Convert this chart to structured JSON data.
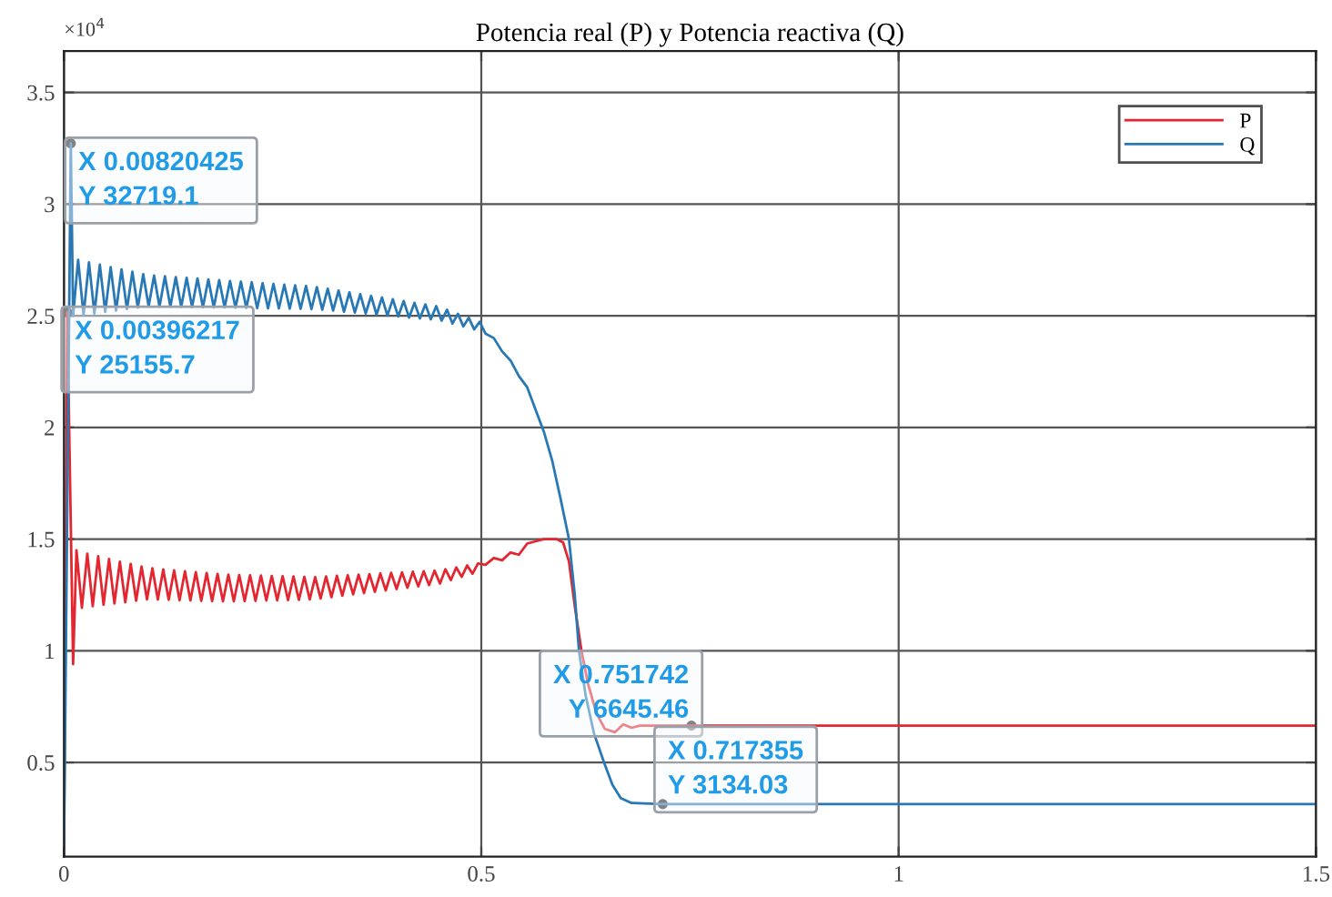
{
  "chart_data": {
    "type": "line",
    "title": "Potencia real (P) y Potencia reactiva (Q)",
    "xlim": [
      0,
      1.5
    ],
    "xticks": [
      0,
      0.5,
      1,
      1.5
    ],
    "ylim": [
      0.078,
      3.685
    ],
    "yticks": [
      0.5,
      1,
      1.5,
      2,
      2.5,
      3,
      3.5
    ],
    "grid": true,
    "legend": "top right",
    "line_style": "solid",
    "annotations": [
      "×10$^{4}$",
      {
        "text": "X 0.00820425\nY 32719.1",
        "x": 0.00820425,
        "y": 3.27191
      },
      {
        "text": "X 0.00396217\nY 25155.7",
        "x": 0.00396217,
        "y": 2.51557
      },
      {
        "text": "X 0.751742\n  Y 6645.46",
        "x": 0.751742,
        "y": 0.664546
      },
      {
        "text": "X 0.717355\nY 3134.03",
        "x": 0.717355,
        "y": 0.313403
      }
    ],
    "series": [
      {
        "name": "P",
        "color": "#e3262f",
        "x": [
          0,
          0.00396217,
          0.011,
          0.015,
          0.0215,
          0.028,
          0.0345,
          0.041,
          0.0475,
          0.054,
          0.0605,
          0.067,
          0.0735,
          0.08,
          0.0865,
          0.093,
          0.0995,
          0.106,
          0.1125,
          0.119,
          0.1255,
          0.132,
          0.1385,
          0.145,
          0.1515,
          0.158,
          0.1645,
          0.171,
          0.1775,
          0.184,
          0.1905,
          0.197,
          0.2035,
          0.21,
          0.2165,
          0.223,
          0.2295,
          0.236,
          0.2425,
          0.249,
          0.2555,
          0.262,
          0.2685,
          0.275,
          0.2815,
          0.288,
          0.2945,
          0.301,
          0.3075,
          0.314,
          0.3205,
          0.327,
          0.3335,
          0.34,
          0.3465,
          0.353,
          0.3595,
          0.366,
          0.3725,
          0.379,
          0.3855,
          0.392,
          0.3985,
          0.405,
          0.4115,
          0.418,
          0.4245,
          0.431,
          0.4375,
          0.444,
          0.4505,
          0.457,
          0.4635,
          0.47,
          0.4765,
          0.483,
          0.4895,
          0.496,
          0.505,
          0.515,
          0.525,
          0.535,
          0.545,
          0.555,
          0.565,
          0.575,
          0.59,
          0.598,
          0.605,
          0.612,
          0.62,
          0.628,
          0.638,
          0.648,
          0.66,
          0.67,
          0.68,
          0.69,
          0.751742,
          1.5
        ],
        "values": [
          0.08,
          2.516,
          0.94,
          1.45,
          1.192,
          1.435,
          1.199,
          1.423,
          1.206,
          1.411,
          1.212,
          1.399,
          1.217,
          1.389,
          1.224,
          1.377,
          1.23,
          1.369,
          1.229,
          1.364,
          1.228,
          1.36,
          1.226,
          1.356,
          1.225,
          1.352,
          1.223,
          1.348,
          1.222,
          1.344,
          1.221,
          1.341,
          1.221,
          1.339,
          1.222,
          1.338,
          1.223,
          1.337,
          1.225,
          1.335,
          1.226,
          1.334,
          1.227,
          1.333,
          1.228,
          1.331,
          1.23,
          1.33,
          1.234,
          1.333,
          1.24,
          1.336,
          1.246,
          1.338,
          1.252,
          1.341,
          1.258,
          1.343,
          1.264,
          1.346,
          1.27,
          1.349,
          1.276,
          1.351,
          1.282,
          1.354,
          1.288,
          1.356,
          1.294,
          1.359,
          1.301,
          1.365,
          1.316,
          1.373,
          1.331,
          1.382,
          1.345,
          1.391,
          1.385,
          1.415,
          1.405,
          1.44,
          1.43,
          1.48,
          1.49,
          1.5,
          1.5,
          1.485,
          1.4,
          1.2,
          1.0,
          0.85,
          0.72,
          0.65,
          0.635,
          0.67,
          0.655,
          0.665,
          0.665,
          0.665
        ]
      },
      {
        "name": "Q",
        "color": "#2878b5",
        "x": [
          0,
          0.00820425,
          0.011,
          0.017,
          0.0235,
          0.03,
          0.0365,
          0.043,
          0.0495,
          0.056,
          0.0625,
          0.069,
          0.0755,
          0.082,
          0.0885,
          0.095,
          0.1015,
          0.108,
          0.1145,
          0.121,
          0.1275,
          0.134,
          0.1405,
          0.147,
          0.1535,
          0.16,
          0.1665,
          0.173,
          0.1795,
          0.186,
          0.1925,
          0.199,
          0.2055,
          0.212,
          0.2185,
          0.225,
          0.2315,
          0.238,
          0.2445,
          0.251,
          0.2575,
          0.264,
          0.2705,
          0.277,
          0.2835,
          0.29,
          0.2965,
          0.303,
          0.3095,
          0.316,
          0.3225,
          0.329,
          0.3355,
          0.342,
          0.3485,
          0.355,
          0.3615,
          0.368,
          0.3745,
          0.381,
          0.3875,
          0.394,
          0.4005,
          0.407,
          0.4135,
          0.42,
          0.4265,
          0.433,
          0.4395,
          0.446,
          0.4525,
          0.459,
          0.4655,
          0.472,
          0.4785,
          0.485,
          0.4915,
          0.498,
          0.505,
          0.515,
          0.525,
          0.535,
          0.545,
          0.555,
          0.565,
          0.575,
          0.585,
          0.595,
          0.605,
          0.612,
          0.617,
          0.625,
          0.635,
          0.647,
          0.657,
          0.667,
          0.68,
          0.717355,
          1.5
        ],
        "values": [
          0.08,
          3.272,
          2.5,
          2.75,
          2.503,
          2.739,
          2.51,
          2.729,
          2.517,
          2.718,
          2.523,
          2.708,
          2.53,
          2.697,
          2.537,
          2.686,
          2.542,
          2.68,
          2.541,
          2.677,
          2.541,
          2.673,
          2.54,
          2.67,
          2.539,
          2.667,
          2.538,
          2.663,
          2.537,
          2.66,
          2.537,
          2.656,
          2.536,
          2.653,
          2.535,
          2.65,
          2.534,
          2.646,
          2.533,
          2.643,
          2.533,
          2.639,
          2.532,
          2.636,
          2.531,
          2.633,
          2.53,
          2.628,
          2.527,
          2.621,
          2.523,
          2.613,
          2.518,
          2.605,
          2.514,
          2.597,
          2.51,
          2.589,
          2.505,
          2.582,
          2.501,
          2.574,
          2.497,
          2.566,
          2.492,
          2.558,
          2.488,
          2.551,
          2.484,
          2.543,
          2.478,
          2.527,
          2.465,
          2.509,
          2.452,
          2.491,
          2.439,
          2.473,
          2.42,
          2.4,
          2.34,
          2.3,
          2.23,
          2.18,
          2.08,
          1.98,
          1.85,
          1.68,
          1.5,
          1.25,
          1.0,
          0.8,
          0.63,
          0.5,
          0.4,
          0.34,
          0.318,
          0.313,
          0.313
        ]
      }
    ]
  }
}
